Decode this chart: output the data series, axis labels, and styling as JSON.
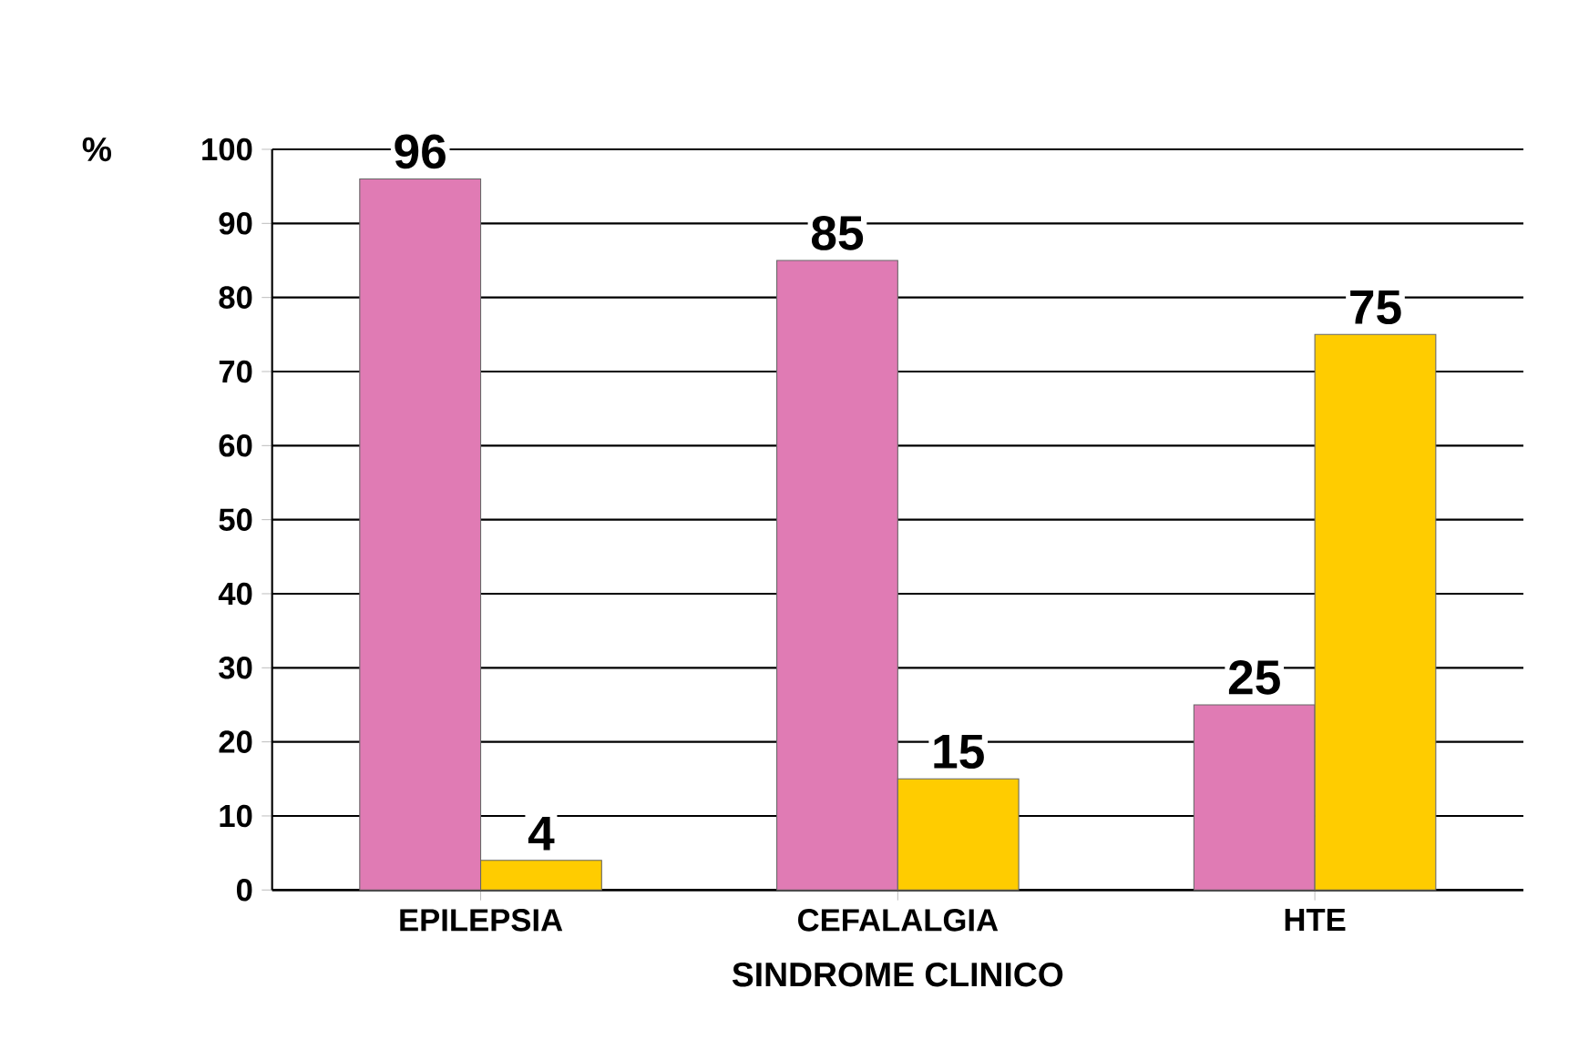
{
  "chart_data": {
    "type": "bar",
    "xlabel": "SINDROME  CLINICO",
    "ylabel": "%",
    "categories": [
      "EPILEPSIA",
      "CEFALALGIA",
      "HTE"
    ],
    "series": [
      {
        "color": "#e07bb4",
        "values": [
          96,
          85,
          25
        ]
      },
      {
        "color": "#ffcc00",
        "values": [
          4,
          15,
          75
        ]
      }
    ],
    "ylim": [
      0,
      100
    ],
    "yticks": [
      0,
      10,
      20,
      30,
      40,
      50,
      60,
      70,
      80,
      90,
      100
    ],
    "grid": "y",
    "data_labels": true
  }
}
